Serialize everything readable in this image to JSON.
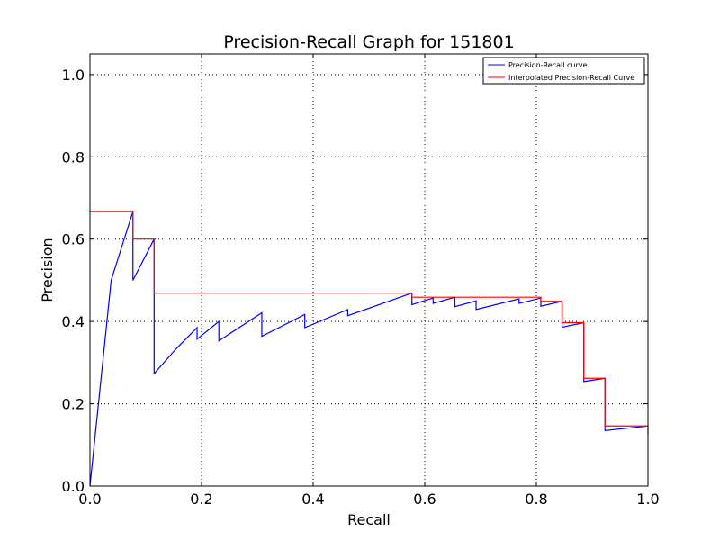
{
  "chart_data": {
    "type": "line",
    "title": "Precision-Recall Graph for 151801",
    "xlabel": "Recall",
    "ylabel": "Precision",
    "xlim": [
      0.0,
      1.0
    ],
    "ylim": [
      0.0,
      1.05
    ],
    "xticks": [
      "0.0",
      "0.2",
      "0.4",
      "0.6",
      "0.8",
      "1.0"
    ],
    "yticks": [
      "0.0",
      "0.2",
      "0.4",
      "0.6",
      "0.8",
      "1.0"
    ],
    "grid": true,
    "legend_position": "top-right",
    "series": [
      {
        "name": "Precision-Recall curve",
        "color": "#0000ff",
        "x": [
          0.0,
          0.038,
          0.077,
          0.077,
          0.115,
          0.115,
          0.154,
          0.192,
          0.192,
          0.231,
          0.231,
          0.308,
          0.308,
          0.385,
          0.385,
          0.462,
          0.462,
          0.577,
          0.577,
          0.615,
          0.615,
          0.654,
          0.654,
          0.692,
          0.692,
          0.769,
          0.769,
          0.808,
          0.808,
          0.846,
          0.846,
          0.885,
          0.885,
          0.923,
          0.923,
          1.0,
          1.0
        ],
        "y": [
          0.0,
          0.5,
          0.667,
          0.5,
          0.6,
          0.273,
          0.333,
          0.385,
          0.357,
          0.4,
          0.353,
          0.421,
          0.364,
          0.417,
          0.385,
          0.429,
          0.414,
          0.469,
          0.441,
          0.457,
          0.444,
          0.459,
          0.436,
          0.45,
          0.429,
          0.455,
          0.444,
          0.457,
          0.437,
          0.449,
          0.386,
          0.397,
          0.254,
          0.262,
          0.135,
          0.146,
          0.127
        ]
      },
      {
        "name": "Interpolated Precision-Recall Curve",
        "color": "#ff0000",
        "x": [
          0.0,
          0.077,
          0.077,
          0.115,
          0.115,
          0.577,
          0.577,
          0.808,
          0.808,
          0.846,
          0.846,
          0.885,
          0.885,
          0.923,
          0.923,
          1.0
        ],
        "y": [
          0.667,
          0.667,
          0.6,
          0.6,
          0.469,
          0.469,
          0.459,
          0.459,
          0.449,
          0.449,
          0.397,
          0.397,
          0.262,
          0.262,
          0.146,
          0.146
        ]
      }
    ]
  }
}
